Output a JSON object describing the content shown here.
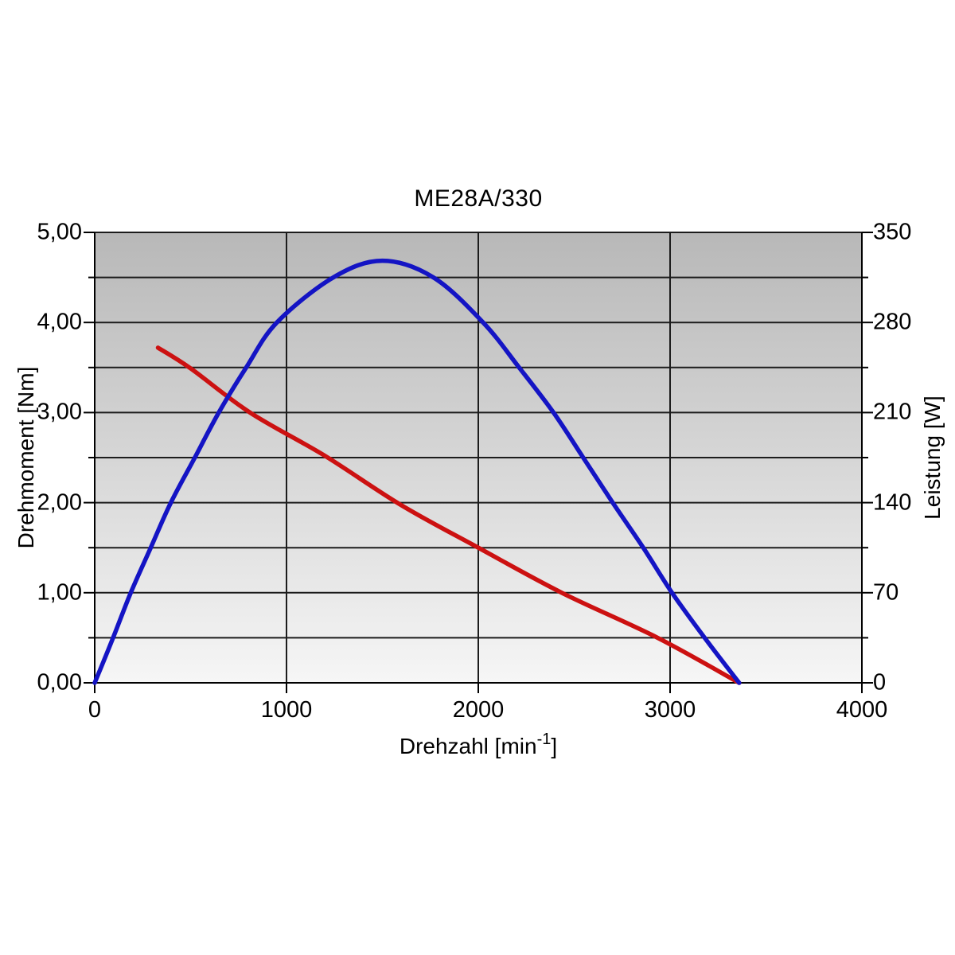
{
  "chart_data": {
    "type": "line",
    "title": "ME28A/330",
    "xlabel": "Drehzahl [min⁻¹]",
    "xlabel_parts": {
      "prefix": "Drehzahl [min",
      "sup": "-1",
      "suffix": "]"
    },
    "ylabel_left": "Drehmoment [Nm]",
    "ylabel_right": "Leistung [W]",
    "xlim": [
      0,
      4000
    ],
    "ylim_left": [
      0,
      5
    ],
    "ylim_right": [
      0,
      350
    ],
    "x_tick_values": [
      0,
      1000,
      2000,
      3000,
      4000
    ],
    "x_tick_labels": [
      "0",
      "1000",
      "2000",
      "3000",
      "4000"
    ],
    "y_left_tick_values": [
      5,
      4,
      3,
      2,
      1,
      0
    ],
    "y_left_tick_labels": [
      "5,00",
      "4,00",
      "3,00",
      "2,00",
      "1,00",
      "0,00"
    ],
    "y_right_tick_values": [
      350,
      280,
      210,
      140,
      70,
      0
    ],
    "y_right_tick_labels": [
      "350",
      "280",
      "210",
      "140",
      "70",
      "0"
    ],
    "grid": {
      "horizontal_step_left_axis": 0.5,
      "vertical_step_x_axis": 1000,
      "color": "#1c1c1c"
    },
    "legend_position": "none",
    "plot_background": {
      "top_color": "#b8b8b8",
      "bottom_color": "#f6f6f6"
    },
    "series": [
      {
        "name": "Drehmoment (torque)",
        "axis": "left",
        "unit": "Nm",
        "color": "#cc1111",
        "points": [
          [
            330,
            3.72
          ],
          [
            500,
            3.49
          ],
          [
            810,
            3.0
          ],
          [
            1200,
            2.52
          ],
          [
            1600,
            1.97
          ],
          [
            2000,
            1.5
          ],
          [
            2435,
            1.0
          ],
          [
            2935,
            0.5
          ],
          [
            3360,
            0.0
          ]
        ]
      },
      {
        "name": "Leistung (power)",
        "axis": "right",
        "unit": "W",
        "color": "#1414c4",
        "points": [
          [
            0,
            0
          ],
          [
            96,
            35
          ],
          [
            188,
            70
          ],
          [
            292,
            105
          ],
          [
            397,
            140
          ],
          [
            522,
            175
          ],
          [
            647,
            210
          ],
          [
            790,
            245
          ],
          [
            950,
            280
          ],
          [
            1244,
            315
          ],
          [
            1500,
            328
          ],
          [
            1766,
            315
          ],
          [
            2025,
            280
          ],
          [
            2213,
            245
          ],
          [
            2392,
            210
          ],
          [
            2547,
            175
          ],
          [
            2701,
            140
          ],
          [
            2860,
            105
          ],
          [
            3010,
            70
          ],
          [
            3180,
            35
          ],
          [
            3360,
            0
          ]
        ]
      }
    ]
  }
}
